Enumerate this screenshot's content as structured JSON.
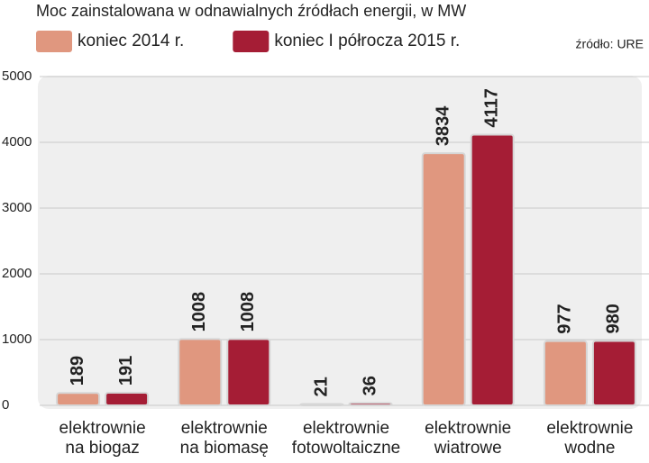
{
  "chart_data": {
    "type": "bar",
    "title": "Moc zainstalowana w odnawialnych źródłach energii, w MW",
    "source": "źródło: URE",
    "categories": [
      "elektrownie na biogaz",
      "elektrownie na biomasę",
      "elektrownie fotowoltaiczne",
      "elektrownie wiatrowe",
      "elektrownie wodne"
    ],
    "series": [
      {
        "name": "koniec 2014 r.",
        "color": "#e0977f",
        "values": [
          189,
          1008,
          21,
          3834,
          977
        ]
      },
      {
        "name": "koniec I półrocza 2015 r.",
        "color": "#a51d35",
        "values": [
          191,
          1008,
          36,
          4117,
          980
        ]
      }
    ],
    "ylim": [
      0,
      5000
    ],
    "yticks": [
      0,
      1000,
      2000,
      3000,
      4000,
      5000
    ],
    "grid": true
  }
}
